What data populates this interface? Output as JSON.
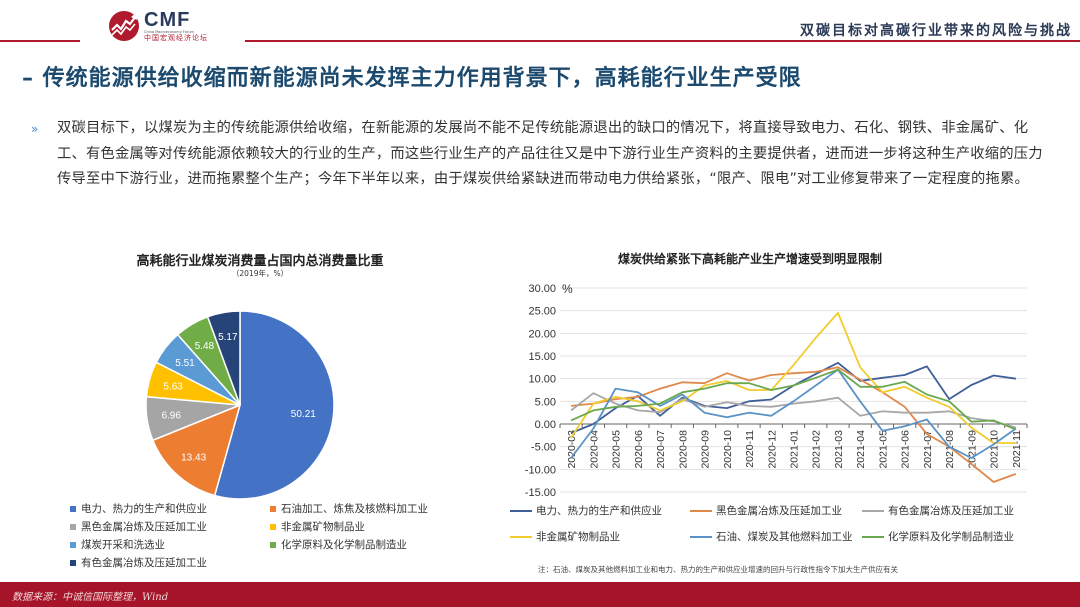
{
  "header": {
    "logo": {
      "brand": "CMF",
      "english": "China Macroeconomy Forum",
      "chinese": "中国宏观经济论坛"
    },
    "section_title": "双碳目标对高碳行业带来的风险与挑战"
  },
  "main_title": "–  传统能源供给收缩而新能源尚未发挥主力作用背景下，高耗能行业生产受限",
  "body": {
    "bullet": "»",
    "paragraph": "双碳目标下，以煤炭为主的传统能源供给收缩，在新能源的发展尚不能不足传统能源退出的缺口的情况下，将直接导致电力、石化、钢铁、非金属矿、化工、有色金属等对传统能源依赖较大的行业的生产，而这些行业生产的产品往往又是中下游行业生产资料的主要提供者，进而进一步将这种生产收缩的压力传导至中下游行业，进而拖累整个生产；今年下半年以来，由于煤炭供给紧缺进而带动电力供给紧张，“限产、限电”对工业修复带来了一定程度的拖累。"
  },
  "pie_chart": {
    "title": "高耗能行业煤炭消费量占国内总消费量比重",
    "subtitle": "（2019年，%）",
    "legend": [
      {
        "label": "电力、热力的生产和供应业",
        "color": "#4472c4"
      },
      {
        "label": "石油加工、炼焦及核燃料加工业",
        "color": "#ed7d31"
      },
      {
        "label": "黑色金属冶炼及压延加工业",
        "color": "#a5a5a5"
      },
      {
        "label": "非金属矿物制品业",
        "color": "#ffc000"
      },
      {
        "label": "煤炭开采和洗选业",
        "color": "#5b9bd5"
      },
      {
        "label": "化学原料及化学制品制造业",
        "color": "#70ad47"
      },
      {
        "label": "有色金属冶炼及压延加工业",
        "color": "#264478"
      }
    ]
  },
  "line_chart": {
    "title": "煤炭供给紧张下高耗能产业生产增速受到明显限制",
    "unit": "%",
    "legend": [
      {
        "label": "电力、热力的生产和供应业",
        "color": "#3f5f99"
      },
      {
        "label": "黑色金属冶炼及压延加工业",
        "color": "#e0894a"
      },
      {
        "label": "有色金属冶炼及压延加工业",
        "color": "#a8a8a8"
      },
      {
        "label": "非金属矿物制品业",
        "color": "#f2cc2e"
      },
      {
        "label": "石油、煤炭及其他燃料加工业",
        "color": "#5b93c7"
      },
      {
        "label": "化学原料及化学制品制造业",
        "color": "#6aa84f"
      }
    ],
    "note": "注：石油、煤炭及其他燃料加工业和电力、热力的生产和供应业增速的回升与行政性指令下加大生产供应有关"
  },
  "footer": {
    "source": "数据来源：中诚信国际整理，Wind"
  },
  "chart_data": [
    {
      "type": "pie",
      "title": "高耗能行业煤炭消费量占国内总消费量比重",
      "subtitle": "（2019年，%）",
      "categories": [
        "电力、热力的生产和供应业",
        "石油加工、炼焦及核燃料加工业",
        "黑色金属冶炼及压延加工业",
        "非金属矿物制品业",
        "煤炭开采和洗选业",
        "化学原料及化学制品制造业",
        "有色金属冶炼及压延加工业"
      ],
      "values": [
        50.21,
        13.43,
        6.96,
        5.63,
        5.51,
        5.48,
        5.17
      ],
      "legend_position": "bottom"
    },
    {
      "type": "line",
      "title": "煤炭供给紧张下高耗能产业生产增速受到明显限制",
      "xlabel": "",
      "ylabel": "%",
      "ylim": [
        -15,
        30
      ],
      "yticks": [
        "30.00",
        "25.00",
        "20.00",
        "15.00",
        "10.00",
        "5.00",
        "0.00",
        "-5.00",
        "-10.00",
        "-15.00"
      ],
      "grid": true,
      "legend_position": "bottom",
      "x": [
        "2020-03",
        "2020-04",
        "2020-05",
        "2020-06",
        "2020-07",
        "2020-08",
        "2020-09",
        "2020-10",
        "2020-11",
        "2020-12",
        "2021-01",
        "2021-02",
        "2021-03",
        "2021-04",
        "2021-05",
        "2021-06",
        "2021-07",
        "2021-08",
        "2021-09",
        "2021-10",
        "2021-11"
      ],
      "series": [
        {
          "name": "电力、热力的生产和供应业",
          "values": [
            -2.0,
            0.0,
            3.5,
            6.2,
            1.8,
            5.8,
            4.0,
            3.5,
            5.0,
            5.4,
            8.5,
            11.0,
            13.5,
            9.5,
            10.2,
            10.8,
            12.7,
            5.5,
            8.6,
            10.7,
            10.0
          ]
        },
        {
          "name": "黑色金属冶炼及压延加工业",
          "values": [
            4.0,
            4.5,
            5.5,
            6.0,
            7.8,
            9.2,
            9.0,
            11.2,
            9.6,
            10.8,
            11.2,
            11.5,
            12.5,
            9.8,
            7.0,
            3.8,
            -2.2,
            -5.0,
            -8.8,
            -12.8,
            -11.0
          ]
        },
        {
          "name": "有色金属冶炼及压延加工业",
          "values": [
            3.0,
            6.8,
            4.5,
            3.0,
            2.6,
            5.5,
            3.8,
            4.8,
            4.0,
            3.8,
            4.5,
            5.0,
            5.8,
            1.8,
            2.8,
            2.5,
            2.5,
            2.8,
            1.3,
            0.6,
            -0.8
          ]
        },
        {
          "name": "非金属矿物制品业",
          "values": [
            -3.0,
            4.5,
            6.0,
            5.0,
            3.0,
            5.0,
            8.5,
            9.5,
            7.5,
            7.5,
            13.0,
            19.0,
            24.5,
            12.5,
            7.0,
            8.2,
            5.8,
            3.8,
            -0.8,
            -4.2,
            -4.2
          ]
        },
        {
          "name": "石油、煤炭及其他燃料加工业",
          "values": [
            -7.5,
            -1.0,
            7.8,
            7.0,
            4.0,
            6.5,
            2.5,
            1.5,
            2.5,
            1.8,
            5.0,
            8.5,
            12.0,
            5.0,
            -1.5,
            -0.5,
            1.0,
            -5.0,
            -7.5,
            -4.5,
            -1.0
          ]
        },
        {
          "name": "化学原料及化学制品制造业",
          "values": [
            0.8,
            3.0,
            3.8,
            4.0,
            4.5,
            7.0,
            7.8,
            9.0,
            9.0,
            7.5,
            8.5,
            10.2,
            12.0,
            8.2,
            8.2,
            9.3,
            6.5,
            5.0,
            0.5,
            0.8,
            -1.2
          ]
        }
      ]
    }
  ]
}
